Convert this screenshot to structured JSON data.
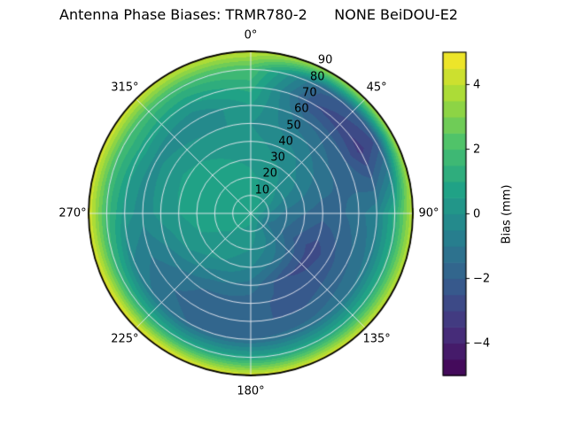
{
  "title": "Antenna Phase Biases: TRMR780-2      NONE BeiDOU-E2",
  "colorbar": {
    "label": "Bias (mm)",
    "ticks": [
      {
        "value": -4,
        "label": "−4"
      },
      {
        "value": -2,
        "label": "−2"
      },
      {
        "value": 0,
        "label": "0"
      },
      {
        "value": 2,
        "label": "2"
      },
      {
        "value": 4,
        "label": "4"
      }
    ]
  },
  "chart_data": {
    "type": "heatmap",
    "projection": "polar",
    "title": "Antenna Phase Biases: TRMR780-2      NONE BeiDOU-E2",
    "colorbar_label": "Bias (mm)",
    "colormap": "viridis",
    "colormap_stops": [
      "#440154",
      "#46327e",
      "#365c8d",
      "#277f8e",
      "#1fa187",
      "#4ac16d",
      "#a0da39",
      "#fde725"
    ],
    "clim": [
      -5,
      5
    ],
    "level_step": 0.5,
    "angular_ticks": [
      {
        "angle": 0,
        "label": "0°"
      },
      {
        "angle": 45,
        "label": "45°"
      },
      {
        "angle": 90,
        "label": "90°"
      },
      {
        "angle": 135,
        "label": "135°"
      },
      {
        "angle": 180,
        "label": "180°"
      },
      {
        "angle": 225,
        "label": "225°"
      },
      {
        "angle": 270,
        "label": "270°"
      },
      {
        "angle": 315,
        "label": "315°"
      }
    ],
    "radial_ticks": [
      {
        "r": 10,
        "label": "10"
      },
      {
        "r": 20,
        "label": "20"
      },
      {
        "r": 30,
        "label": "30"
      },
      {
        "r": 40,
        "label": "40"
      },
      {
        "r": 50,
        "label": "50"
      },
      {
        "r": 60,
        "label": "60"
      },
      {
        "r": 70,
        "label": "70"
      },
      {
        "r": 80,
        "label": "80"
      },
      {
        "r": 90,
        "label": "90"
      }
    ],
    "azimuth_deg": [
      0,
      30,
      60,
      90,
      120,
      150,
      180,
      210,
      240,
      270,
      300,
      330
    ],
    "zenith_deg": [
      0,
      10,
      20,
      30,
      40,
      50,
      60,
      70,
      80,
      90
    ],
    "bias_mm": [
      [
        0.8,
        0.8,
        0.8,
        0.8,
        0.8,
        0.8,
        0.8,
        0.8,
        0.8,
        0.8,
        0.8,
        0.8
      ],
      [
        0.8,
        0.5,
        0.2,
        -0.5,
        -1.0,
        -0.3,
        0.3,
        0.5,
        0.6,
        0.8,
        0.9,
        0.9
      ],
      [
        0.6,
        0.3,
        -0.3,
        -1.2,
        -1.5,
        -0.6,
        0.0,
        0.3,
        0.5,
        0.8,
        0.9,
        0.8
      ],
      [
        0.4,
        0.0,
        -0.6,
        -1.5,
        -2.2,
        -1.2,
        -0.5,
        0.0,
        0.4,
        0.7,
        0.8,
        0.6
      ],
      [
        0.2,
        -0.3,
        -1.0,
        -1.8,
        -2.8,
        -2.5,
        -1.2,
        -0.8,
        0.0,
        0.5,
        0.6,
        0.4
      ],
      [
        0.0,
        -0.8,
        -1.5,
        -1.6,
        -2.2,
        -2.3,
        -1.8,
        -1.6,
        -0.8,
        0.2,
        0.3,
        0.0
      ],
      [
        0.5,
        -1.5,
        -2.0,
        -1.2,
        -1.6,
        -2.0,
        -2.0,
        -1.8,
        -1.2,
        -0.3,
        -0.2,
        -0.5
      ],
      [
        1.2,
        -2.5,
        -3.2,
        -0.6,
        -0.9,
        -1.3,
        -1.5,
        -1.5,
        -0.8,
        0.3,
        0.8,
        0.5
      ],
      [
        2.0,
        -1.8,
        -2.4,
        1.2,
        1.2,
        1.0,
        0.8,
        1.0,
        1.5,
        1.8,
        2.0,
        1.8
      ],
      [
        4.2,
        3.5,
        3.8,
        4.0,
        4.2,
        4.5,
        4.5,
        4.8,
        4.8,
        4.5,
        4.5,
        4.2
      ]
    ]
  }
}
